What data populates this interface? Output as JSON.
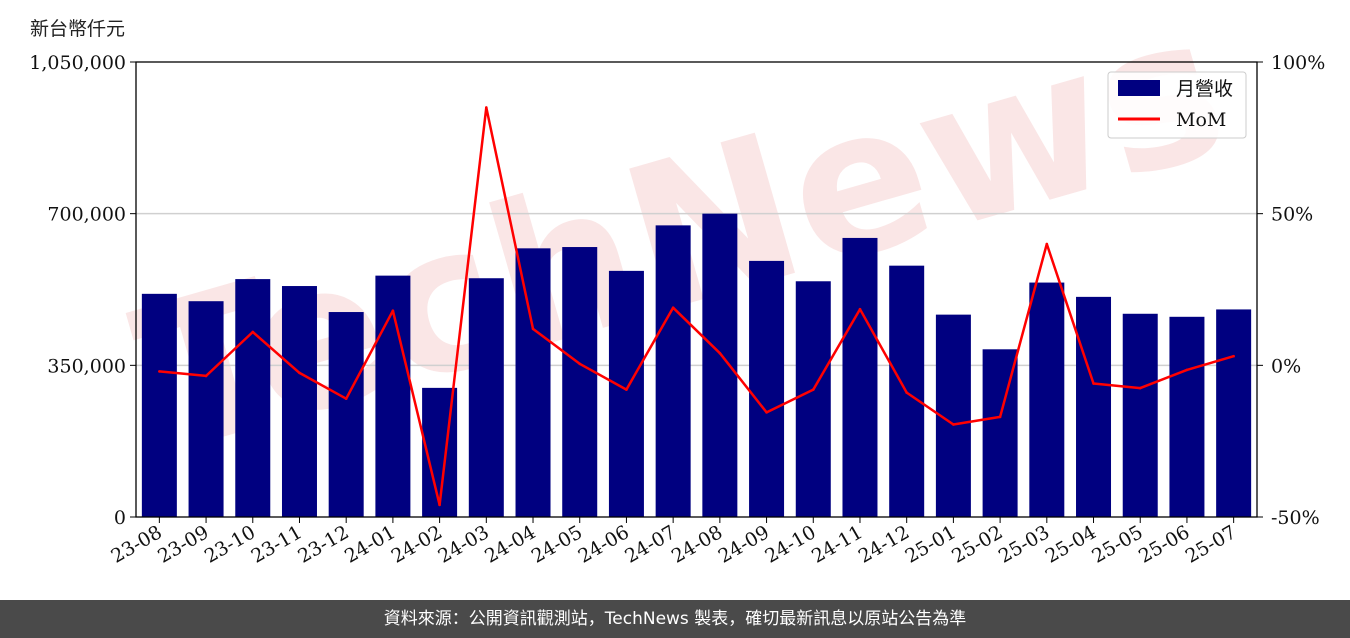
{
  "unit_label": "新台幣仟元",
  "watermark": "TechNews",
  "footer_text": "資料來源：公開資訊觀測站，TechNews 製表，確切最新訊息以原站公告為準",
  "colors": {
    "bar": "#000080",
    "line": "#ff0000",
    "grid": "#d0d0d0",
    "footer_bg": "#4a4a4a"
  },
  "chart_data": {
    "type": "bar",
    "categories": [
      "23-08",
      "23-09",
      "23-10",
      "23-11",
      "23-12",
      "24-01",
      "24-02",
      "24-03",
      "24-04",
      "24-05",
      "24-06",
      "24-07",
      "24-08",
      "24-09",
      "24-10",
      "24-11",
      "24-12",
      "25-01",
      "25-02",
      "25-03",
      "25-04",
      "25-05",
      "25-06",
      "25-07"
    ],
    "series": [
      {
        "name": "月營收",
        "type": "bar",
        "axis": "left",
        "values": [
          515000,
          498000,
          549000,
          533000,
          473000,
          557000,
          298000,
          551000,
          620000,
          623000,
          568000,
          673000,
          700000,
          591000,
          544000,
          644000,
          580000,
          467000,
          387000,
          541000,
          508000,
          469000,
          462000,
          479000
        ]
      },
      {
        "name": "MoM",
        "type": "line",
        "axis": "right",
        "values": [
          -2,
          -3.5,
          11,
          -2.5,
          -11,
          18,
          -46,
          85,
          12,
          0.5,
          -8,
          19,
          4,
          -15.5,
          -8,
          18.5,
          -9,
          -19.5,
          -17,
          40,
          -6,
          -7.5,
          -1.5,
          3
        ]
      }
    ],
    "y_left": {
      "ticks": [
        "0",
        "350,000",
        "700,000",
        "1,050,000"
      ],
      "range": [
        0,
        1050000
      ]
    },
    "y_right": {
      "ticks": [
        "-50%",
        "0%",
        "50%",
        "100%"
      ],
      "range": [
        -50,
        100
      ]
    },
    "grid": "horizontal",
    "legend_position": "top-right"
  }
}
